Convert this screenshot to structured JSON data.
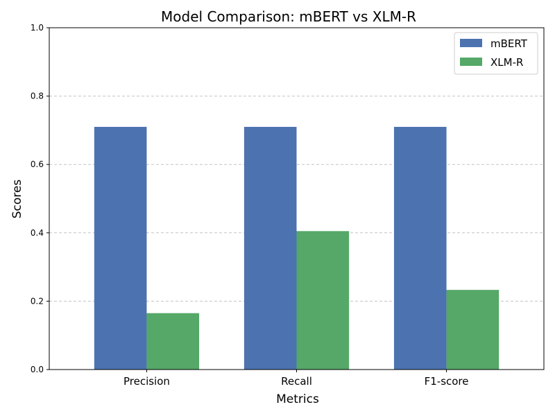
{
  "chart_data": {
    "type": "bar",
    "title": "Model Comparison: mBERT vs XLM-R",
    "xlabel": "Metrics",
    "ylabel": "Scores",
    "categories": [
      "Precision",
      "Recall",
      "F1-score"
    ],
    "series": [
      {
        "name": "mBERT",
        "values": [
          0.71,
          0.71,
          0.71
        ],
        "color": "#4c72b0"
      },
      {
        "name": "XLM-R",
        "values": [
          0.165,
          0.405,
          0.233
        ],
        "color": "#55a868"
      }
    ],
    "ylim": [
      0,
      1
    ],
    "yticks": [
      "0.0",
      "0.2",
      "0.4",
      "0.6",
      "0.8",
      "1.0"
    ],
    "grid": "y-dashed",
    "legend": "top-right"
  }
}
